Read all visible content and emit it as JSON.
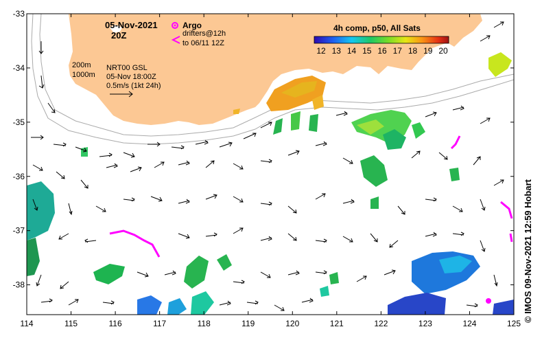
{
  "map": {
    "date_label": "05-Nov-2021",
    "time_label": "20Z",
    "argo_label": "Argo",
    "drifters_label": "drifters@12h",
    "drifters_to_label": "to 06/11 12Z",
    "depth_200": "200m",
    "depth_1000": "1000m",
    "product_label": "NRT00 GSL",
    "product_time": "05-Nov 18:00Z",
    "scale_label": "0.5m/s (1kt 24h)",
    "colorbar_title": "4h comp, p50, All Sats",
    "colorbar_ticks": [
      "12",
      "13",
      "14",
      "15",
      "16",
      "17",
      "18",
      "19",
      "20"
    ],
    "credit": "© IMOS 09-Nov-2021 12:59 Hobart",
    "x_ticks": [
      "114",
      "115",
      "116",
      "117",
      "118",
      "119",
      "120",
      "121",
      "122",
      "123",
      "124",
      "125"
    ],
    "y_ticks": [
      "-33",
      "-34",
      "-35",
      "-36",
      "-37",
      "-38"
    ],
    "colors": {
      "land": "#fcc894",
      "argo": "#ff00ff",
      "drifter": "#ff00ff",
      "isobath": "#aaaaaa"
    }
  },
  "chart_data": {
    "type": "heatmap",
    "title": "4h comp, p50, All Sats",
    "xlim": [
      114,
      125
    ],
    "ylim": [
      -38.55,
      -33
    ],
    "colorbar_range": [
      12,
      20
    ]
  }
}
